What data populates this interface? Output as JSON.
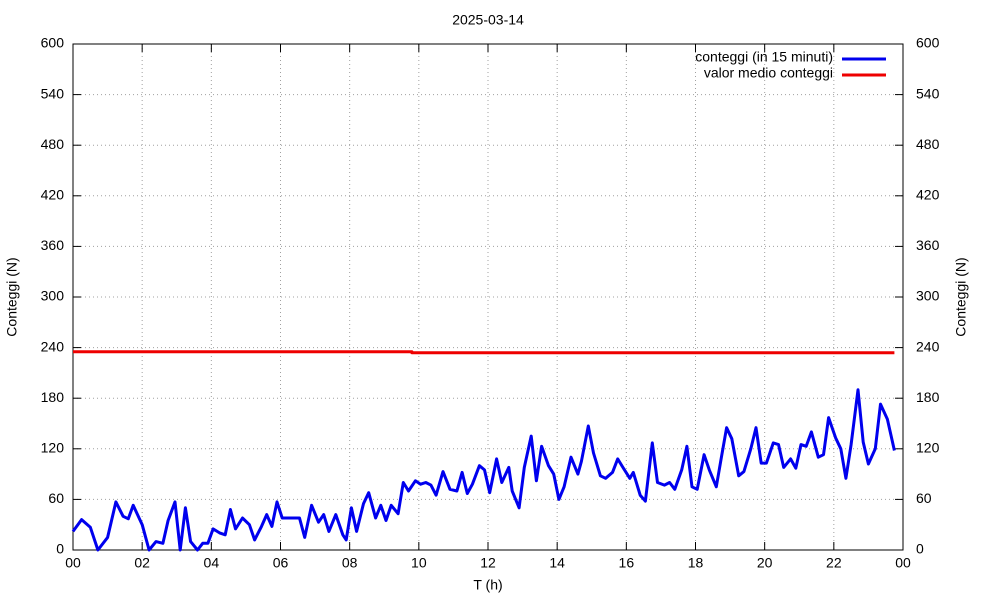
{
  "chart_data": {
    "type": "line",
    "title": "2025-03-14",
    "xlabel": "T (h)",
    "ylabel": "Conteggi (N)",
    "y2label": "Conteggi (N)",
    "xlim": [
      0,
      24
    ],
    "xticks": [
      {
        "value": 0,
        "label": "00"
      },
      {
        "value": 2,
        "label": "02"
      },
      {
        "value": 4,
        "label": "04"
      },
      {
        "value": 6,
        "label": "06"
      },
      {
        "value": 8,
        "label": "08"
      },
      10,
      12,
      14,
      16,
      18,
      20,
      22,
      {
        "value": 24,
        "label": "00"
      }
    ],
    "ylim": [
      0,
      600
    ],
    "yticks": [
      0,
      60,
      120,
      180,
      240,
      300,
      360,
      420,
      480,
      540,
      600
    ],
    "y2lim": [
      0,
      600
    ],
    "y2ticks": [
      0,
      60,
      120,
      180,
      240,
      300,
      360,
      420,
      480,
      540,
      600
    ],
    "grid": true,
    "legend": "top-right",
    "series": [
      {
        "name": "conteggi (in 15 minuti)",
        "color": "#0000ee",
        "x": [
          0,
          0.25,
          0.5,
          0.72,
          1.0,
          1.24,
          1.45,
          1.6,
          1.74,
          2.0,
          2.2,
          2.4,
          2.6,
          2.75,
          2.95,
          3.1,
          3.25,
          3.4,
          3.6,
          3.75,
          3.9,
          4.05,
          4.25,
          4.4,
          4.55,
          4.7,
          4.9,
          5.1,
          5.25,
          5.45,
          5.6,
          5.75,
          5.9,
          6.05,
          6.55,
          6.7,
          6.9,
          7.1,
          7.25,
          7.4,
          7.6,
          7.8,
          7.9,
          8.05,
          8.2,
          8.4,
          8.55,
          8.75,
          8.9,
          9.05,
          9.2,
          9.4,
          9.55,
          9.7,
          9.9,
          10.05,
          10.2,
          10.35,
          10.5,
          10.7,
          10.9,
          11.1,
          11.25,
          11.4,
          11.55,
          11.75,
          11.9,
          12.05,
          12.25,
          12.4,
          12.6,
          12.7,
          12.9,
          13.05,
          13.25,
          13.4,
          13.55,
          13.75,
          13.9,
          14.05,
          14.2,
          14.4,
          14.6,
          14.7,
          14.9,
          15.05,
          15.25,
          15.4,
          15.6,
          15.75,
          15.9,
          16.1,
          16.2,
          16.4,
          16.55,
          16.75,
          16.9,
          17.1,
          17.25,
          17.4,
          17.6,
          17.75,
          17.9,
          18.05,
          18.25,
          18.4,
          18.6,
          18.75,
          18.9,
          19.05,
          19.25,
          19.4,
          19.6,
          19.75,
          19.9,
          20.05,
          20.25,
          20.4,
          20.55,
          20.75,
          20.9,
          21.05,
          21.2,
          21.35,
          21.55,
          21.7,
          21.85,
          22.05,
          22.2,
          22.35,
          22.5,
          22.7,
          22.85,
          23.0,
          23.2,
          23.35,
          23.55,
          23.75
        ],
        "values": [
          22,
          36,
          27,
          0,
          15,
          57,
          40,
          37,
          53,
          30,
          0,
          10,
          8,
          35,
          57,
          0,
          50,
          10,
          0,
          8,
          8,
          25,
          20,
          18,
          48,
          25,
          38,
          30,
          12,
          28,
          42,
          28,
          57,
          38,
          38,
          15,
          53,
          33,
          42,
          22,
          42,
          18,
          12,
          50,
          22,
          55,
          68,
          38,
          53,
          35,
          53,
          43,
          80,
          70,
          82,
          78,
          80,
          77,
          65,
          93,
          72,
          70,
          92,
          67,
          78,
          100,
          95,
          68,
          108,
          80,
          98,
          70,
          50,
          98,
          135,
          82,
          123,
          100,
          90,
          60,
          75,
          110,
          90,
          105,
          147,
          115,
          88,
          85,
          92,
          108,
          98,
          85,
          92,
          65,
          58,
          127,
          80,
          77,
          80,
          72,
          95,
          123,
          75,
          72,
          113,
          95,
          75,
          110,
          145,
          132,
          88,
          93,
          120,
          145,
          103,
          103,
          127,
          125,
          98,
          108,
          97,
          125,
          123,
          140,
          110,
          113,
          157,
          133,
          120,
          85,
          125,
          190,
          128,
          102,
          120,
          173,
          155,
          118
        ]
      },
      {
        "name": "valor medio conteggi",
        "color": "#ee0000",
        "x": [
          0,
          9.8,
          9.8,
          23.75
        ],
        "values": [
          235,
          235,
          234,
          234
        ]
      }
    ]
  }
}
